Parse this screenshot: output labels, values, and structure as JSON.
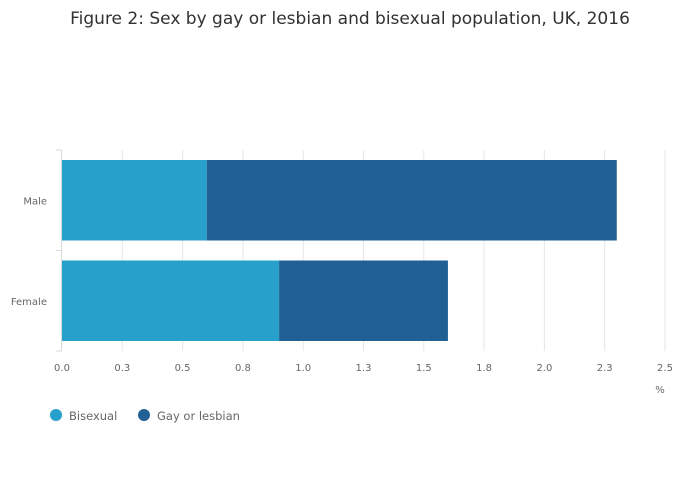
{
  "chart_data": {
    "type": "bar",
    "orientation": "horizontal",
    "stacked": true,
    "title": "Figure 2: Sex by gay or lesbian and bisexual population, UK, 2016",
    "categories": [
      "Male",
      "Female"
    ],
    "series": [
      {
        "name": "Bisexual",
        "color": "#27a0cc",
        "values": [
          0.6,
          0.9
        ]
      },
      {
        "name": "Gay or lesbian",
        "color": "#206095",
        "values": [
          1.7,
          0.7
        ]
      }
    ],
    "xlabel": "%",
    "ylabel": "",
    "xlim": [
      0,
      2.5
    ],
    "x_ticks": [
      0,
      0.25,
      0.5,
      0.75,
      1.0,
      1.25,
      1.5,
      1.75,
      2.0,
      2.25,
      2.5
    ],
    "x_tick_labels": [
      "0.0",
      "0.3",
      "0.5",
      "0.8",
      "1.0",
      "1.3",
      "1.5",
      "1.8",
      "2.0",
      "2.3",
      "2.5"
    ],
    "grid": true,
    "legend_position": "bottom-left"
  }
}
